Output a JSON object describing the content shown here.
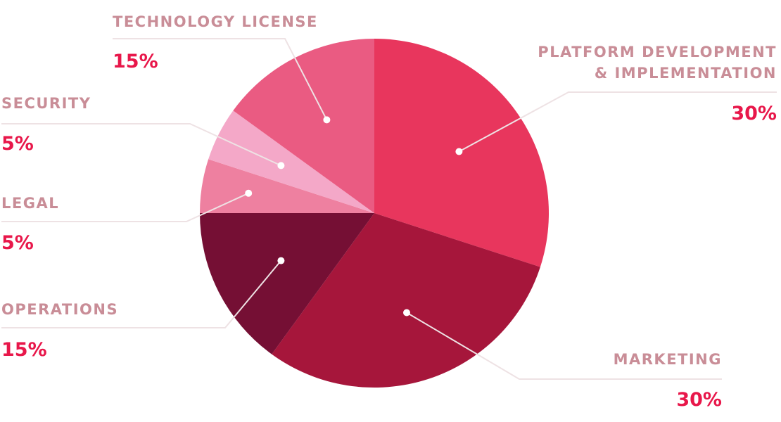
{
  "chart_data": {
    "type": "pie",
    "title": "",
    "slices": [
      {
        "name": "PLATFORM DEVELOPMENT",
        "name2": "& IMPLEMENTATION",
        "value": 30,
        "label": "30%",
        "color": "#e8365d"
      },
      {
        "name": "MARKETING",
        "value": 30,
        "label": "30%",
        "color": "#a6163b"
      },
      {
        "name": "OPERATIONS",
        "value": 15,
        "label": "15%",
        "color": "#750f34"
      },
      {
        "name": "LEGAL",
        "value": 5,
        "label": "5%",
        "color": "#ee80a0"
      },
      {
        "name": "SECURITY",
        "value": 5,
        "label": "5%",
        "color": "#f4a8c8"
      },
      {
        "name": "TECHNOLOGY LICENSE",
        "value": 15,
        "label": "15%",
        "color": "#ea5b82"
      }
    ]
  },
  "colors": {
    "label_text": "#c98d97",
    "percent_text": "#e8174a",
    "leader_line": "#eee2e4"
  }
}
